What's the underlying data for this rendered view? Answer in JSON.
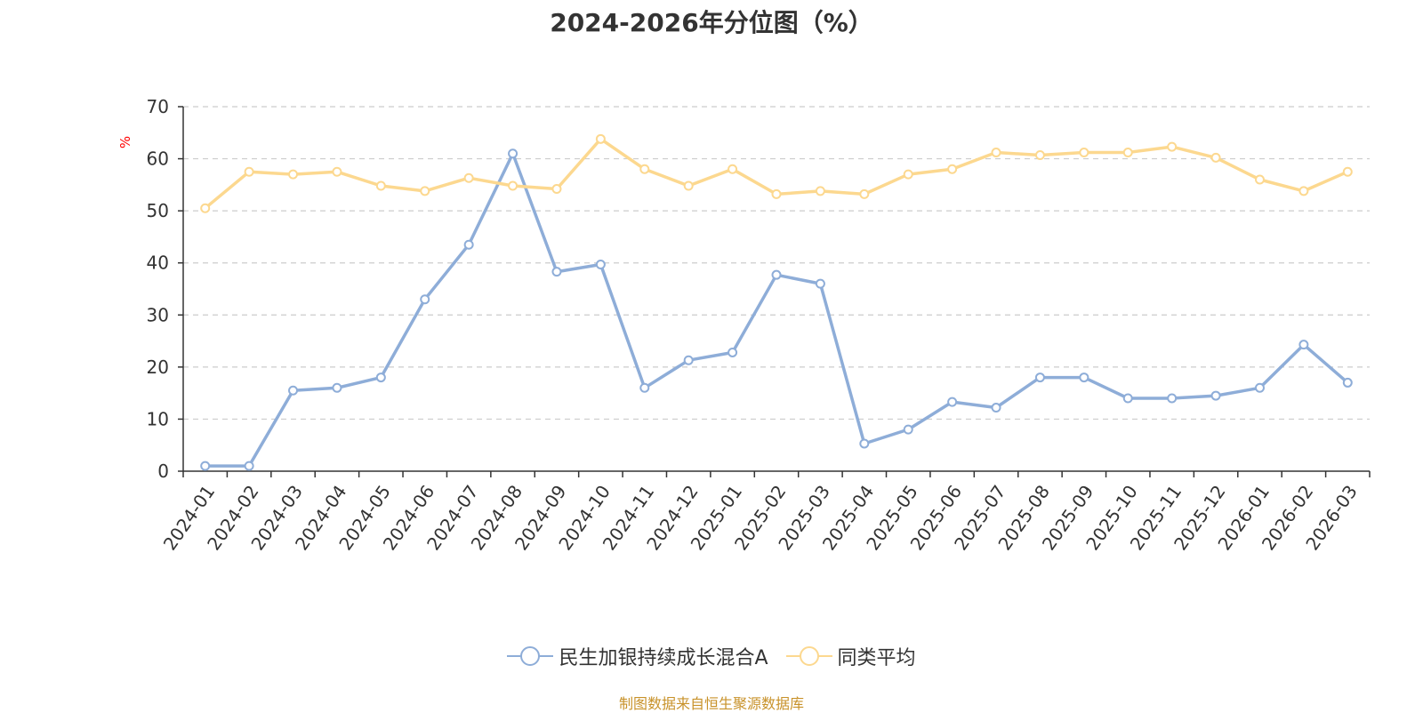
{
  "chart_data": {
    "type": "line",
    "title": "2024-2026年分位图（%）",
    "ylabel": "%",
    "xlabel": "",
    "ylim": [
      0,
      70
    ],
    "yticks": [
      0,
      10,
      20,
      30,
      40,
      50,
      60,
      70
    ],
    "grid": true,
    "legend_position": "bottom-center",
    "categories": [
      "2024-01",
      "2024-02",
      "2024-03",
      "2024-04",
      "2024-05",
      "2024-06",
      "2024-07",
      "2024-08",
      "2024-09",
      "2024-10",
      "2024-11",
      "2024-12",
      "2025-01",
      "2025-02",
      "2025-03",
      "2025-04",
      "2025-05",
      "2025-06",
      "2025-07",
      "2025-08",
      "2025-09",
      "2025-10",
      "2025-11",
      "2025-12",
      "2026-01",
      "2026-02",
      "2026-03"
    ],
    "series": [
      {
        "name": "民生加银持续成长混合A",
        "color": "#8eadd8",
        "values": [
          1,
          1,
          15.5,
          16,
          18,
          33,
          43.5,
          61,
          38.3,
          39.7,
          16,
          21.3,
          22.8,
          37.7,
          36,
          5.3,
          8,
          13.3,
          12.2,
          18,
          18,
          14,
          14,
          14.5,
          16,
          24.3,
          17
        ]
      },
      {
        "name": "同类平均",
        "color": "#fcd88f",
        "values": [
          50.5,
          57.5,
          57,
          57.5,
          54.8,
          53.8,
          56.3,
          54.8,
          54.2,
          63.8,
          58,
          54.8,
          58,
          53.2,
          53.8,
          53.2,
          57,
          58,
          61.2,
          60.7,
          61.2,
          61.2,
          62.3,
          60.2,
          56,
          53.8,
          57.5
        ]
      }
    ]
  },
  "footer": {
    "source": "制图数据来自恒生聚源数据库"
  }
}
